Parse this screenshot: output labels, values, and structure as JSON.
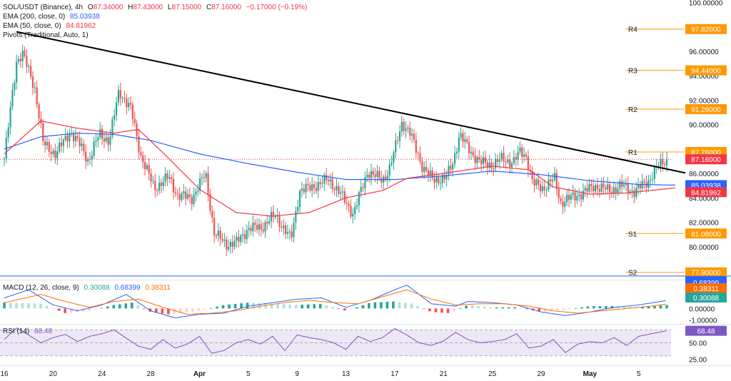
{
  "header": {
    "symbol": "SOL/USDT (Binance), 4h",
    "o_label": "O",
    "o": "87.34000",
    "h_label": "H",
    "h": "87.43000",
    "l_label": "L",
    "l": "87.15000",
    "c_label": "C",
    "c": "87.16000",
    "change": "−0.17000 (−0.19%)"
  },
  "overlays": {
    "ema200_label": "EMA (200, close, 0)",
    "ema200_value": "85.03938",
    "ema50_label": "EMA (50, close, 0)",
    "ema50_value": "84.81962",
    "pivots_label": "Pivots (Traditional, Auto, 1)"
  },
  "macd_legend": {
    "label": "MACD (12, 26, close, 9)",
    "v1": "0.30088",
    "v2": "0.68399",
    "v3": "0.38311"
  },
  "rsi_legend": {
    "label": "RSI (14)",
    "value": "68.48"
  },
  "colors": {
    "up": "#26a69a",
    "down": "#ef5350",
    "ema200": "#2962ff",
    "ema50": "#f23645",
    "pivot": "#ff9800",
    "trendline": "#000000",
    "macd": "#2962ff",
    "signal": "#ff6d00",
    "rsi": "#7e57c2",
    "rsi_band": "#ede7f6",
    "price_tag": "#f23645",
    "s2_line": "#2962ff"
  },
  "chart_data": [
    {
      "type": "candlestick",
      "title": "SOL/USDT (Binance), 4h",
      "ylim": [
        77.3,
        100.2
      ],
      "y_ticks": [
        "80.00000",
        "82.00000",
        "84.00000",
        "86.00000",
        "88.00000",
        "90.00000",
        "92.00000",
        "94.00000",
        "96.00000",
        "98.00000",
        "100.00000"
      ],
      "x_ticks": [
        "16",
        "20",
        "24",
        "28",
        "Apr",
        "5",
        "9",
        "13",
        "17",
        "21",
        "25",
        "29",
        "May",
        "5"
      ],
      "x_ticks_day": [
        0,
        4,
        8,
        12,
        16,
        20,
        24,
        28,
        32,
        36,
        40,
        44,
        48,
        52
      ],
      "x_range_days": [
        0,
        55
      ],
      "price_waypoints": [
        [
          0,
          87.2
        ],
        [
          1,
          95.2
        ],
        [
          1.5,
          95.8
        ],
        [
          2.5,
          93.0
        ],
        [
          3.2,
          88.4
        ],
        [
          4.2,
          87.6
        ],
        [
          5.4,
          89.4
        ],
        [
          6.3,
          88.2
        ],
        [
          6.9,
          87.0
        ],
        [
          7.8,
          89.3
        ],
        [
          8.6,
          88.6
        ],
        [
          9.4,
          92.8
        ],
        [
          10.4,
          91.2
        ],
        [
          11.2,
          87.4
        ],
        [
          12.3,
          84.8
        ],
        [
          13.5,
          85.7
        ],
        [
          14.2,
          84.2
        ],
        [
          15.4,
          84.0
        ],
        [
          16.5,
          86.0
        ],
        [
          17.2,
          81.1
        ],
        [
          18.2,
          80.2
        ],
        [
          19.0,
          80.3
        ],
        [
          20.0,
          81.5
        ],
        [
          21.1,
          81.6
        ],
        [
          22.2,
          82.6
        ],
        [
          23.5,
          80.6
        ],
        [
          24.2,
          84.6
        ],
        [
          25.0,
          84.8
        ],
        [
          26.6,
          85.5
        ],
        [
          27.5,
          84.4
        ],
        [
          28.6,
          82.7
        ],
        [
          29.8,
          86.2
        ],
        [
          31.0,
          85.4
        ],
        [
          31.6,
          86.5
        ],
        [
          32.0,
          87.9
        ],
        [
          32.6,
          90.2
        ],
        [
          33.3,
          89.2
        ],
        [
          34.3,
          86.5
        ],
        [
          35.1,
          85.5
        ],
        [
          36.2,
          85.6
        ],
        [
          36.8,
          87.0
        ],
        [
          37.3,
          89.2
        ],
        [
          38.2,
          87.8
        ],
        [
          39.0,
          86.9
        ],
        [
          40.0,
          86.7
        ],
        [
          40.8,
          87.2
        ],
        [
          41.7,
          86.9
        ],
        [
          42.3,
          87.8
        ],
        [
          42.8,
          87.4
        ],
        [
          43.3,
          85.2
        ],
        [
          44.2,
          84.8
        ],
        [
          45.1,
          85.6
        ],
        [
          45.6,
          83.6
        ],
        [
          46.4,
          84.0
        ],
        [
          47.4,
          84.4
        ],
        [
          48.4,
          85.0
        ],
        [
          49.6,
          84.6
        ],
        [
          50.6,
          85.0
        ],
        [
          51.6,
          84.5
        ],
        [
          52.8,
          85.4
        ],
        [
          53.5,
          86.5
        ],
        [
          54.3,
          87.16
        ]
      ],
      "ema200": {
        "name": "EMA (200, close, 0)",
        "last": 85.03938,
        "waypoints": [
          [
            0,
            88.0
          ],
          [
            3,
            89.0
          ],
          [
            6,
            89.3
          ],
          [
            9,
            89.2
          ],
          [
            12,
            88.7
          ],
          [
            16,
            87.6
          ],
          [
            20,
            86.8
          ],
          [
            24,
            86.1
          ],
          [
            28,
            85.5
          ],
          [
            32,
            85.5
          ],
          [
            36,
            85.8
          ],
          [
            40,
            86.2
          ],
          [
            44,
            85.9
          ],
          [
            48,
            85.4
          ],
          [
            52,
            85.1
          ],
          [
            55,
            85.04
          ]
        ]
      },
      "ema50": {
        "name": "EMA (50, close, 0)",
        "last": 84.81962,
        "waypoints": [
          [
            0,
            87.6
          ],
          [
            3,
            90.3
          ],
          [
            6,
            89.7
          ],
          [
            9,
            89.3
          ],
          [
            11,
            89.6
          ],
          [
            13,
            87.7
          ],
          [
            16,
            84.7
          ],
          [
            19,
            82.8
          ],
          [
            22,
            82.5
          ],
          [
            25,
            82.8
          ],
          [
            28,
            84.0
          ],
          [
            31,
            84.6
          ],
          [
            33,
            85.6
          ],
          [
            36,
            86.0
          ],
          [
            40,
            86.6
          ],
          [
            43,
            86.3
          ],
          [
            45,
            84.9
          ],
          [
            48,
            84.3
          ],
          [
            51,
            84.4
          ],
          [
            55,
            84.82
          ]
        ]
      },
      "trendline": {
        "start": [
          1,
          97.6
        ],
        "end": [
          55,
          86.1
        ]
      },
      "pivots": [
        {
          "label": "R4",
          "value": 97.82,
          "value_text": "97.82000"
        },
        {
          "label": "R3",
          "value": 94.44,
          "value_text": "94.44000"
        },
        {
          "label": "R2",
          "value": 91.26,
          "value_text": "91.26000"
        },
        {
          "label": "R1",
          "value": 87.76,
          "value_text": "87.76000"
        },
        {
          "label": "S1",
          "value": 81.08,
          "value_text": "81.08000"
        },
        {
          "label": "S2",
          "value": 77.9,
          "value_text": "77.90000"
        }
      ],
      "last_price": {
        "value": 87.16,
        "value_text": "87.16000"
      },
      "horizontal_line": {
        "value": 77.6,
        "value_text": "77.60000"
      }
    },
    {
      "type": "macd",
      "title": "MACD (12, 26, close, 9)",
      "ylim": [
        -1.2,
        2.4
      ],
      "y_ticks": [
        "0.00000",
        "-1.00000"
      ],
      "y_tick_values": [
        0,
        -1
      ],
      "histogram_waypoints": [
        [
          0,
          0.5
        ],
        [
          3,
          0.4
        ],
        [
          5,
          -0.4
        ],
        [
          7,
          -0.2
        ],
        [
          9,
          0.3
        ],
        [
          10.5,
          0.5
        ],
        [
          12,
          -0.3
        ],
        [
          13.5,
          -0.5
        ],
        [
          16,
          -0.2
        ],
        [
          18,
          0.3
        ],
        [
          20,
          0.5
        ],
        [
          22,
          0.4
        ],
        [
          24,
          0.3
        ],
        [
          26,
          0.4
        ],
        [
          28,
          -0.2
        ],
        [
          30,
          0.5
        ],
        [
          32,
          0.6
        ],
        [
          33.5,
          0.4
        ],
        [
          35,
          -0.3
        ],
        [
          36.5,
          -0.4
        ],
        [
          38,
          0.3
        ],
        [
          40,
          0.1
        ],
        [
          42,
          0.1
        ],
        [
          44,
          -0.3
        ],
        [
          46,
          -0.1
        ],
        [
          48,
          0.2
        ],
        [
          50,
          0.2
        ],
        [
          52,
          0.1
        ],
        [
          54.3,
          0.30088
        ]
      ],
      "macd_waypoints": [
        [
          0,
          0.9
        ],
        [
          2,
          1.6
        ],
        [
          4,
          0.3
        ],
        [
          6,
          -0.2
        ],
        [
          8,
          0.3
        ],
        [
          10,
          1.2
        ],
        [
          12,
          -0.2
        ],
        [
          14,
          -0.8
        ],
        [
          16,
          -0.5
        ],
        [
          18,
          -0.4
        ],
        [
          20,
          0.2
        ],
        [
          22,
          0.5
        ],
        [
          24,
          0.8
        ],
        [
          26,
          0.9
        ],
        [
          28,
          0.1
        ],
        [
          30,
          0.7
        ],
        [
          32,
          1.6
        ],
        [
          33,
          2.0
        ],
        [
          35,
          0.4
        ],
        [
          37,
          0.2
        ],
        [
          38,
          0.6
        ],
        [
          40,
          0.5
        ],
        [
          42,
          0.3
        ],
        [
          44,
          -0.3
        ],
        [
          46,
          -0.6
        ],
        [
          48,
          -0.3
        ],
        [
          50,
          0.1
        ],
        [
          52,
          0.3
        ],
        [
          54.3,
          0.68399
        ]
      ],
      "signal_waypoints": [
        [
          0,
          0.5
        ],
        [
          3,
          1.2
        ],
        [
          5,
          0.6
        ],
        [
          7,
          0.1
        ],
        [
          9,
          0.6
        ],
        [
          11,
          0.8
        ],
        [
          13,
          0.1
        ],
        [
          15,
          -0.5
        ],
        [
          17,
          -0.4
        ],
        [
          19,
          -0.2
        ],
        [
          21,
          0.2
        ],
        [
          23,
          0.5
        ],
        [
          25,
          0.7
        ],
        [
          27,
          0.5
        ],
        [
          29,
          0.4
        ],
        [
          31,
          1.0
        ],
        [
          33,
          1.6
        ],
        [
          35,
          0.8
        ],
        [
          37,
          0.3
        ],
        [
          39,
          0.4
        ],
        [
          41,
          0.4
        ],
        [
          43,
          0.2
        ],
        [
          45,
          -0.2
        ],
        [
          47,
          -0.4
        ],
        [
          49,
          -0.2
        ],
        [
          51,
          0.0
        ],
        [
          53,
          0.2
        ],
        [
          54.3,
          0.38311
        ]
      ],
      "value_tags": [
        "0.68399",
        "0.38311",
        "0.30088"
      ]
    },
    {
      "type": "line",
      "title": "RSI (14)",
      "ylim": [
        22,
        78
      ],
      "y_ticks": [
        "50.00",
        "25.00"
      ],
      "y_tick_values": [
        50,
        25
      ],
      "band": [
        30,
        70
      ],
      "rsi_waypoints": [
        [
          0,
          55
        ],
        [
          1,
          73
        ],
        [
          2,
          62
        ],
        [
          3,
          50
        ],
        [
          4,
          58
        ],
        [
          5,
          63
        ],
        [
          6,
          52
        ],
        [
          7,
          60
        ],
        [
          8,
          64
        ],
        [
          9,
          70
        ],
        [
          10,
          57
        ],
        [
          11,
          45
        ],
        [
          12,
          40
        ],
        [
          13,
          55
        ],
        [
          14,
          42
        ],
        [
          15,
          48
        ],
        [
          16,
          60
        ],
        [
          17,
          34
        ],
        [
          18,
          38
        ],
        [
          19,
          50
        ],
        [
          20,
          55
        ],
        [
          21,
          48
        ],
        [
          22,
          60
        ],
        [
          23,
          38
        ],
        [
          24,
          62
        ],
        [
          25,
          58
        ],
        [
          26,
          55
        ],
        [
          27,
          50
        ],
        [
          28,
          40
        ],
        [
          29,
          60
        ],
        [
          30,
          52
        ],
        [
          31,
          58
        ],
        [
          32,
          72
        ],
        [
          33,
          62
        ],
        [
          34,
          50
        ],
        [
          35,
          46
        ],
        [
          36,
          53
        ],
        [
          37,
          66
        ],
        [
          38,
          55
        ],
        [
          39,
          50
        ],
        [
          40,
          52
        ],
        [
          41,
          55
        ],
        [
          42,
          64
        ],
        [
          43,
          42
        ],
        [
          44,
          45
        ],
        [
          45,
          55
        ],
        [
          46,
          35
        ],
        [
          47,
          48
        ],
        [
          48,
          52
        ],
        [
          49,
          50
        ],
        [
          50,
          58
        ],
        [
          51,
          46
        ],
        [
          52,
          60
        ],
        [
          53,
          64
        ],
        [
          54.3,
          68.48
        ]
      ],
      "value_tag": "68.48"
    }
  ]
}
